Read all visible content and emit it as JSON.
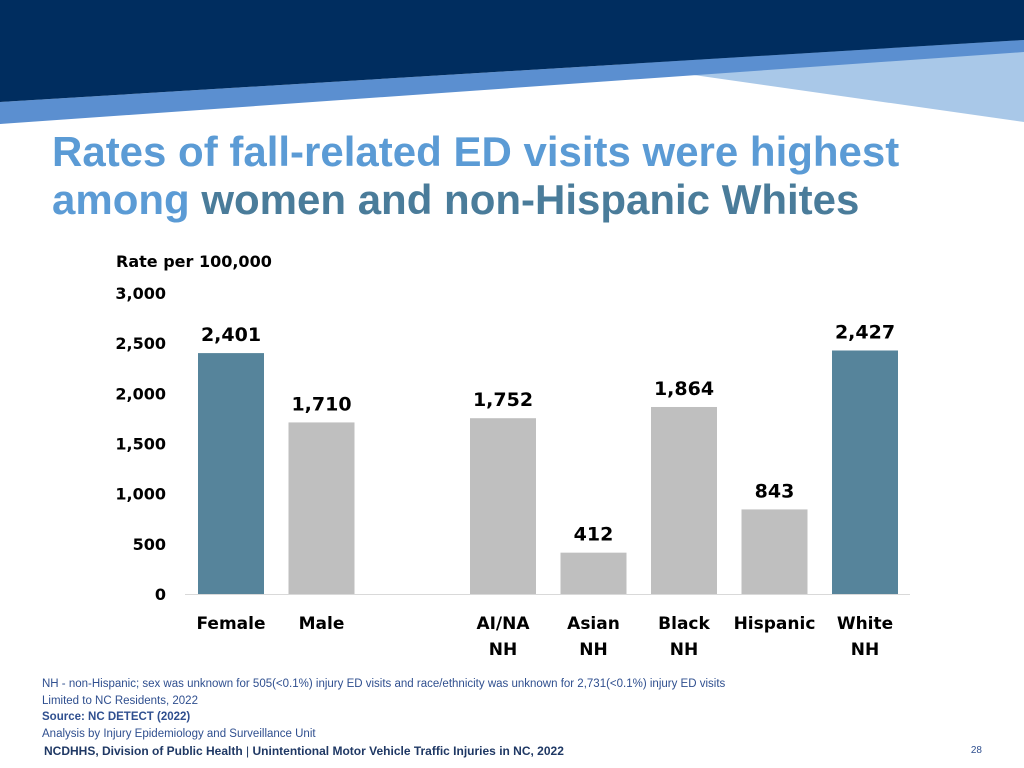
{
  "slide": {
    "title_line1": "Rates of fall-related ED visits were highest",
    "title_line2_part1": "among ",
    "title_line2_part2": "women and non-Hispanic Whites",
    "page_number": "28"
  },
  "colors": {
    "banner_dark": "#002d5f",
    "banner_mid": "#5b8fd0",
    "banner_light": "#a9c8e8",
    "highlight_bar": "#56849b",
    "other_bar": "#bfbfbf"
  },
  "chart_data": {
    "type": "bar",
    "ylabel": "Rate per 100,000",
    "ylim": [
      0,
      3000
    ],
    "yticks": [
      "0",
      "500",
      "1,000",
      "1,500",
      "2,000",
      "2,500",
      "3,000"
    ],
    "grid": false,
    "legend": "none",
    "groups": [
      {
        "bars": [
          {
            "category": [
              "Female"
            ],
            "value": 2401,
            "label": "2,401",
            "highlight": true
          },
          {
            "category": [
              "Male"
            ],
            "value": 1710,
            "label": "1,710",
            "highlight": false
          }
        ]
      },
      {
        "bars": [
          {
            "category": [
              "AI/NA",
              "NH"
            ],
            "value": 1752,
            "label": "1,752",
            "highlight": false
          },
          {
            "category": [
              "Asian",
              "NH"
            ],
            "value": 412,
            "label": "412",
            "highlight": false
          },
          {
            "category": [
              "Black",
              "NH"
            ],
            "value": 1864,
            "label": "1,864",
            "highlight": false
          },
          {
            "category": [
              "Hispanic"
            ],
            "value": 843,
            "label": "843",
            "highlight": false
          },
          {
            "category": [
              "White",
              "NH"
            ],
            "value": 2427,
            "label": "2,427",
            "highlight": true
          }
        ]
      }
    ]
  },
  "notes": {
    "line1": "NH - non-Hispanic; sex was unknown for 505(<0.1%) injury ED visits and race/ethnicity was unknown for 2,731(<0.1%) injury ED visits",
    "line2": "Limited to NC Residents, 2022",
    "source": "Source: NC DETECT (2022)",
    "line4": "Analysis by Injury Epidemiology and Surveillance Unit"
  },
  "footer": {
    "org": "NCDHHS, Division of Public Health",
    "separator": " | ",
    "report": "Unintentional Motor Vehicle Traffic Injuries in NC, 2022"
  }
}
